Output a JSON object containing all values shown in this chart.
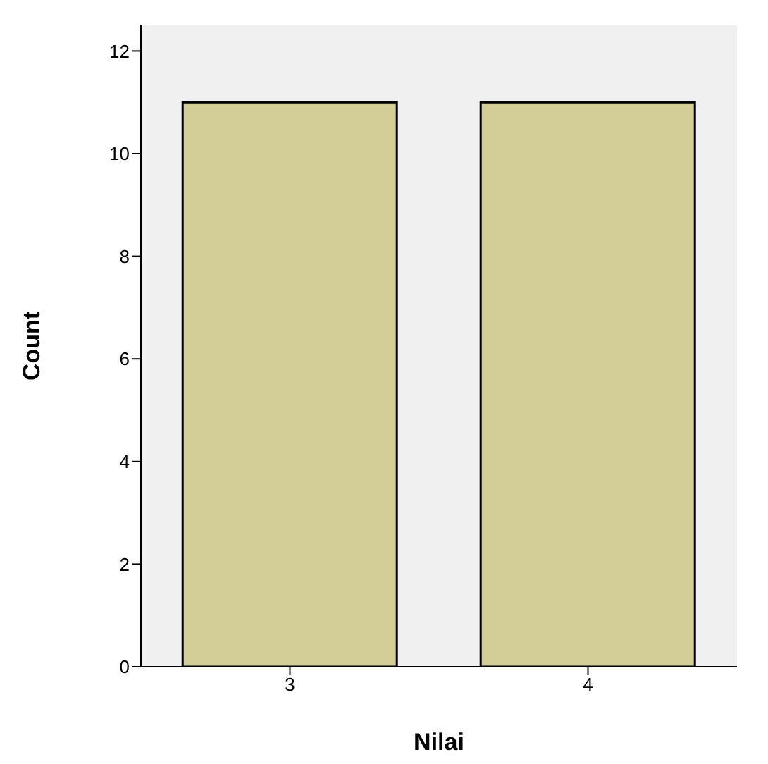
{
  "chart_data": {
    "type": "bar",
    "xlabel": "Nilai",
    "ylabel": "Count",
    "categories": [
      "3",
      "4"
    ],
    "values": [
      11,
      11
    ],
    "color": "#d3ce97",
    "ylim": [
      0,
      12.5
    ],
    "yticks": [
      0,
      2,
      4,
      6,
      8,
      10,
      12
    ],
    "grid": false
  }
}
